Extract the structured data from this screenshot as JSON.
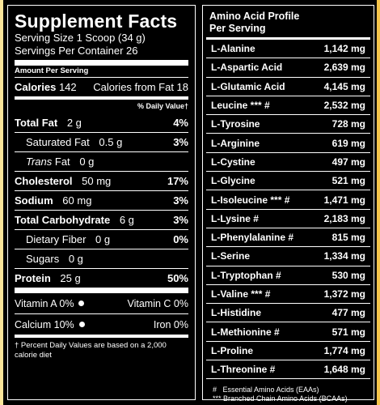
{
  "facts": {
    "title": "Supplement Facts",
    "serving_size": "Serving Size 1 Scoop (34 g)",
    "servings_per_container": "Servings Per Container 26",
    "amount_per_serving": "Amount Per Serving",
    "calories_label": "Calories",
    "calories_value": "142",
    "calories_fat": "Calories from Fat 18",
    "dv_header": "% Daily Value†",
    "rows": [
      {
        "label": "Total Fat",
        "amount": "2 g",
        "pct": "4%",
        "bold": true
      },
      {
        "label": "Saturated Fat",
        "amount": "0.5 g",
        "pct": "3%",
        "bold": false
      },
      {
        "label": "Trans",
        "label_rest": "Fat",
        "amount": "0 g",
        "pct": "",
        "bold": false
      },
      {
        "label": "Cholesterol",
        "amount": "50 mg",
        "pct": "17%",
        "bold": true
      },
      {
        "label": "Sodium",
        "amount": "60 mg",
        "pct": "3%",
        "bold": true
      },
      {
        "label": "Total Carbohydrate",
        "amount": "6 g",
        "pct": "3%",
        "bold": true
      },
      {
        "label": "Dietary Fiber",
        "amount": "0 g",
        "pct": "0%",
        "bold": false
      },
      {
        "label": "Sugars",
        "amount": "0 g",
        "pct": "",
        "bold": false
      },
      {
        "label": "Protein",
        "amount": "25 g",
        "pct": "50%",
        "bold": true
      }
    ],
    "vitamins": [
      {
        "left": "Vitamin A",
        "left_pct": "0%",
        "right": "Vitamin C",
        "right_pct": "0%"
      },
      {
        "left": "Calcium",
        "left_pct": "10%",
        "right": "Iron",
        "right_pct": "0%"
      }
    ],
    "footnote": "† Percent Daily Values are based on a 2,000 calorie diet"
  },
  "amino": {
    "title_line1": "Amino Acid Profile",
    "title_line2": "Per Serving",
    "rows": [
      {
        "name": "L-Alanine",
        "value": "1,142 mg"
      },
      {
        "name": "L-Aspartic Acid",
        "value": "2,639 mg"
      },
      {
        "name": "L-Glutamic Acid",
        "value": "4,145 mg"
      },
      {
        "name": "Leucine *** #",
        "value": "2,532 mg"
      },
      {
        "name": "L-Tyrosine",
        "value": "728 mg"
      },
      {
        "name": "L-Arginine",
        "value": "619 mg"
      },
      {
        "name": "L-Cystine",
        "value": "497 mg"
      },
      {
        "name": "L-Glycine",
        "value": "521 mg"
      },
      {
        "name": "L-Isoleucine *** #",
        "value": "1,471 mg"
      },
      {
        "name": "L-Lysine #",
        "value": "2,183 mg"
      },
      {
        "name": "L-Phenylalanine #",
        "value": "815 mg"
      },
      {
        "name": "L-Serine",
        "value": "1,334 mg"
      },
      {
        "name": "L-Tryptophan #",
        "value": "530 mg"
      },
      {
        "name": "L-Valine *** #",
        "value": "1,372 mg"
      },
      {
        "name": "L-Histidine",
        "value": "477 mg"
      },
      {
        "name": "L-Methionine #",
        "value": "571 mg"
      },
      {
        "name": "L-Proline",
        "value": "1,774 mg"
      },
      {
        "name": "L-Threonine #",
        "value": "1,648 mg"
      }
    ],
    "footnote_1": "#   Essential Amino Acids (EAAs)",
    "footnote_2": "*** Branched Chain Amino Acids (BCAAs)"
  }
}
